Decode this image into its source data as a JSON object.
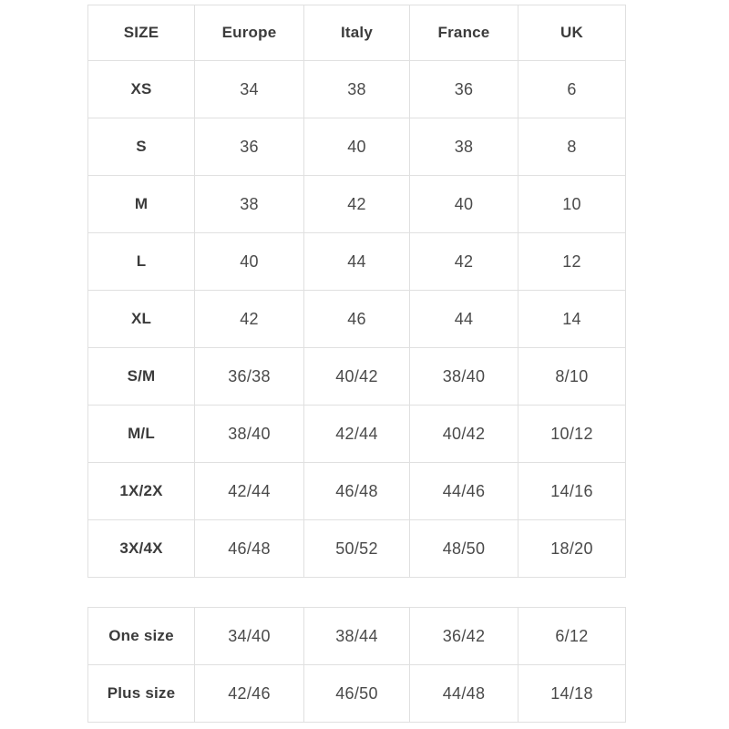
{
  "tables": {
    "main": {
      "name": "size-conversion-table",
      "headers": [
        "SIZE",
        "Europe",
        "Italy",
        "France",
        "UK"
      ],
      "rows": [
        [
          "XS",
          "34",
          "38",
          "36",
          "6"
        ],
        [
          "S",
          "36",
          "40",
          "38",
          "8"
        ],
        [
          "M",
          "38",
          "42",
          "40",
          "10"
        ],
        [
          "L",
          "40",
          "44",
          "42",
          "12"
        ],
        [
          "XL",
          "42",
          "46",
          "44",
          "14"
        ],
        [
          "S/M",
          "36/38",
          "40/42",
          "38/40",
          "8/10"
        ],
        [
          "M/L",
          "38/40",
          "42/44",
          "40/42",
          "10/12"
        ],
        [
          "1X/2X",
          "42/44",
          "46/48",
          "44/46",
          "14/16"
        ],
        [
          "3X/4X",
          "46/48",
          "50/52",
          "48/50",
          "18/20"
        ]
      ]
    },
    "special": {
      "name": "special-sizes-table",
      "rows": [
        [
          "One size",
          "34/40",
          "38/44",
          "36/42",
          "6/12"
        ],
        [
          "Plus size",
          "42/46",
          "46/50",
          "44/48",
          "14/18"
        ]
      ]
    }
  },
  "colors": {
    "background": "#ffffff",
    "border": "#e0e0e0",
    "header_text": "#3b3b3b",
    "value_text": "#4a4a4a"
  }
}
